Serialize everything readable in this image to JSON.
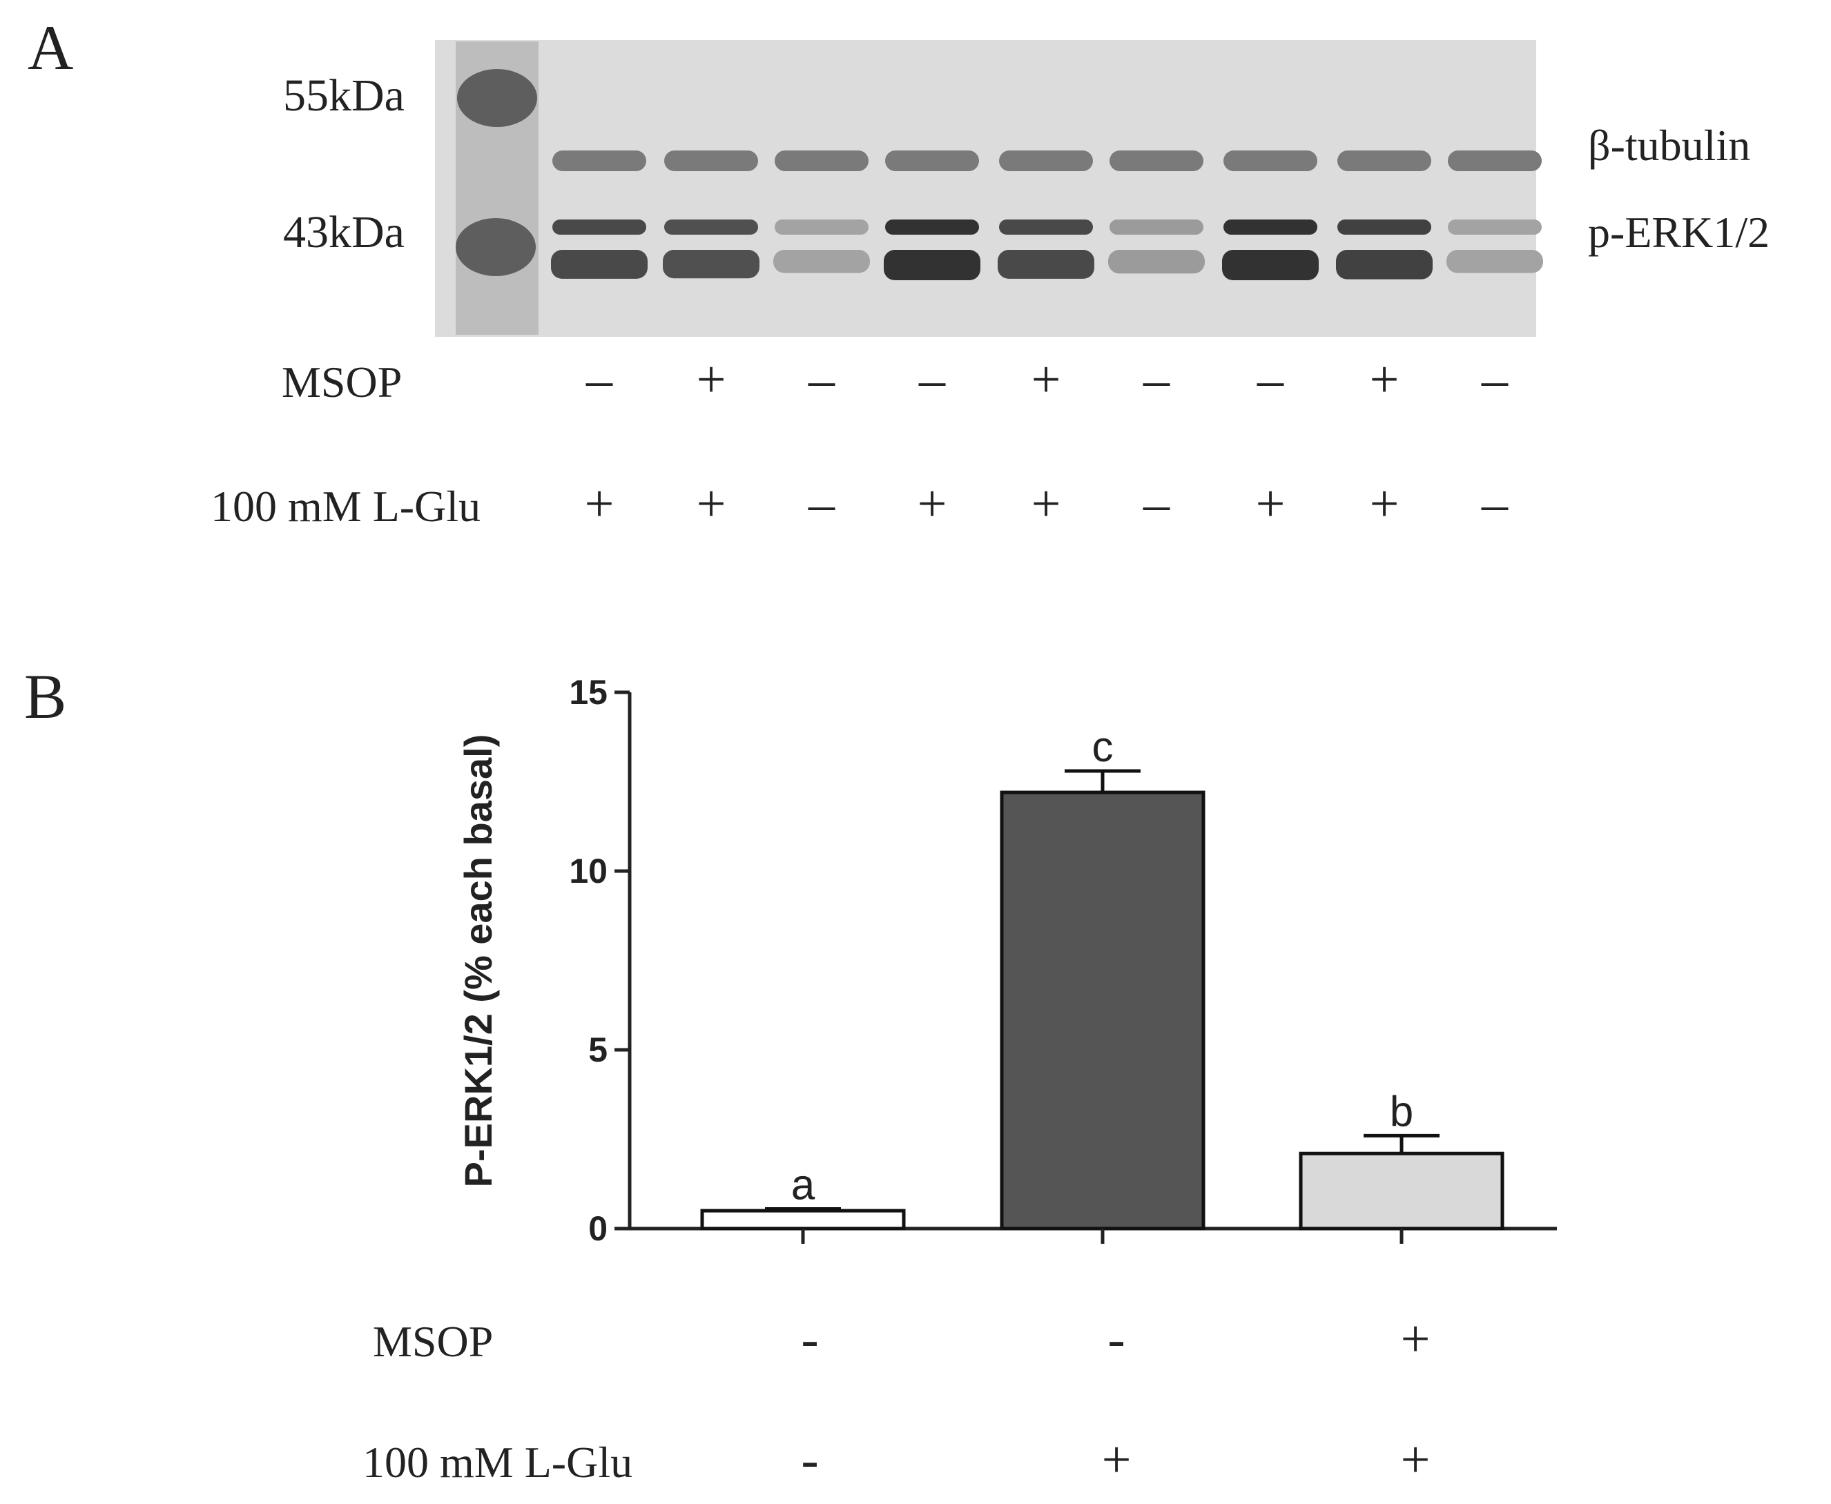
{
  "panel_a": {
    "letter": "A",
    "markers": [
      "55kDa",
      "43kDa"
    ],
    "band_labels": [
      "β-tubulin",
      "p-ERK1/2"
    ],
    "treatments": [
      {
        "label": "MSOP",
        "signs": [
          "–",
          "+",
          "–",
          "–",
          "+",
          "–",
          "–",
          "+",
          "–"
        ]
      },
      {
        "label": "100 mM L-Glu",
        "signs": [
          "+",
          "+",
          "–",
          "+",
          "+",
          "–",
          "+",
          "+",
          "–"
        ]
      }
    ],
    "perk_intensity": [
      0.85,
      0.8,
      0.25,
      1.0,
      0.85,
      0.3,
      1.0,
      0.9,
      0.25
    ]
  },
  "panel_b": {
    "letter": "B",
    "treatments": [
      {
        "label": "MSOP",
        "signs": [
          "-",
          "-",
          "+"
        ]
      },
      {
        "label": "100 mM L-Glu",
        "signs": [
          "-",
          "+",
          "+"
        ]
      }
    ]
  },
  "chart_data": {
    "type": "bar",
    "categories": [
      "",
      "",
      ""
    ],
    "values": [
      0.5,
      12.2,
      2.1
    ],
    "errors": [
      0.05,
      0.6,
      0.5
    ],
    "significance_letters": [
      "a",
      "c",
      "b"
    ],
    "bar_colors": [
      "#ffffff",
      "#555555",
      "#d9d9d9"
    ],
    "title": "",
    "xlabel": "",
    "ylabel": "P-ERK1/2 (% each basal)",
    "ylim": [
      0,
      15
    ],
    "yticks": [
      "0",
      "5",
      "10",
      "15"
    ],
    "grid": false
  }
}
